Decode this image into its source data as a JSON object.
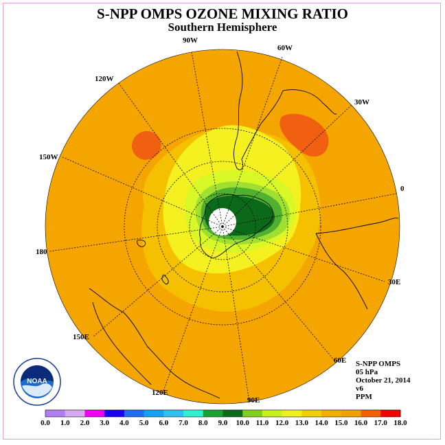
{
  "title": "S-NPP OMPS OZONE MIXING RATIO",
  "subtitle": "Southern Hemisphere",
  "longitude_labels": [
    "90W",
    "60W",
    "30W",
    "0",
    "30E",
    "60E",
    "90E",
    "120E",
    "150E",
    "180",
    "150W",
    "120W"
  ],
  "info": {
    "instrument": "S-NPP OMPS",
    "level": "05 hPa",
    "date": "October 21, 2014",
    "version": "v6",
    "units": "PPM"
  },
  "colorbar": {
    "ticks": [
      "0.0",
      "1.0",
      "2.0",
      "3.0",
      "4.0",
      "5.0",
      "6.0",
      "7.0",
      "8.0",
      "9.0",
      "10.0",
      "11.0",
      "12.0",
      "13.0",
      "14.0",
      "15.0",
      "16.0",
      "17.0",
      "18.0"
    ],
    "colors": [
      "#b07ef0",
      "#d8a8f0",
      "#f000f0",
      "#1a00f0",
      "#1e6ef0",
      "#18a0f0",
      "#30c0f0",
      "#30f0d0",
      "#1aa030",
      "#0a6a1a",
      "#80d020",
      "#c8f020",
      "#f0f020",
      "#f0d000",
      "#f0b000",
      "#f0a000",
      "#f06000",
      "#f00000",
      "#8a5a30"
    ]
  },
  "logo_text": "NOAA",
  "colors": {
    "background_field": "#f5a500",
    "field_15": "#f5a500",
    "field_14": "#f5c000",
    "field_13": "#f5f020",
    "field_12": "#d8f828",
    "field_11": "#a0e030",
    "field_10": "#50b030",
    "field_9": "#0a6a1a",
    "field_16": "#f06010"
  }
}
